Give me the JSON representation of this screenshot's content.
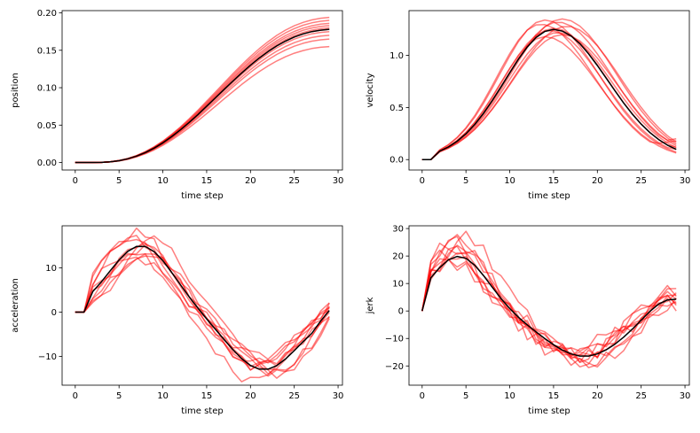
{
  "colors": {
    "trace": "#ff0000",
    "mean": "#000000"
  },
  "chart_data": [
    {
      "type": "line",
      "name": "position",
      "xlabel": "time step",
      "ylabel": "position",
      "xlim": [
        -1.5,
        30.5
      ],
      "ylim": [
        -0.01,
        0.203
      ],
      "xticks": [
        0,
        5,
        10,
        15,
        20,
        25,
        30
      ],
      "yticks": [
        0.0,
        0.05,
        0.1,
        0.15,
        0.2
      ],
      "yticklabels": [
        "0.00",
        "0.05",
        "0.10",
        "0.15",
        "0.20"
      ],
      "mean_end": 0.178,
      "trace_ends": [
        0.155,
        0.165,
        0.17,
        0.175,
        0.178,
        0.18,
        0.183,
        0.186,
        0.19,
        0.194
      ]
    },
    {
      "type": "line",
      "name": "velocity",
      "xlabel": "time step",
      "ylabel": "velocity",
      "xlim": [
        -1.5,
        30.5
      ],
      "ylim": [
        -0.1,
        1.43
      ],
      "xticks": [
        0,
        5,
        10,
        15,
        20,
        25,
        30
      ],
      "yticks": [
        0.0,
        0.5,
        1.0
      ],
      "yticklabels": [
        "0.0",
        "0.5",
        "1.0"
      ],
      "mean_peak": 1.25,
      "mean_peak_t": 15,
      "mean_end": 0.07,
      "trace_peaks": [
        1.18,
        1.2,
        1.22,
        1.24,
        1.26,
        1.28,
        1.3,
        1.32,
        1.34,
        1.35
      ],
      "trace_peak_t": [
        14.0,
        16.0,
        15.5,
        14.5,
        15.0,
        16.5,
        13.5,
        15.5,
        14.0,
        16.0
      ]
    },
    {
      "type": "line",
      "name": "acceleration",
      "xlabel": "time step",
      "ylabel": "acceleration",
      "xlim": [
        -1.5,
        30.5
      ],
      "ylim": [
        -16.5,
        19.5
      ],
      "xticks": [
        0,
        5,
        10,
        15,
        20,
        25,
        30
      ],
      "yticks": [
        -10,
        0,
        10
      ],
      "yticklabels": [
        "−10",
        "0",
        "10"
      ],
      "mean_peak": 15,
      "mean_peak_t": 7.5,
      "mean_min": -13,
      "mean_min_t": 21.5
    },
    {
      "type": "line",
      "name": "jerk",
      "xlabel": "time step",
      "ylabel": "jerk",
      "xlim": [
        -1.5,
        30.5
      ],
      "ylim": [
        -27,
        31
      ],
      "xticks": [
        0,
        5,
        10,
        15,
        20,
        25,
        30
      ],
      "yticks": [
        -20,
        -10,
        0,
        10,
        20,
        30
      ],
      "yticklabels": [
        "−20",
        "−10",
        "0",
        "10",
        "20",
        "30"
      ],
      "mean_peak": 20,
      "mean_peak_t": 4.2,
      "mean_min": -16.5,
      "mean_min_t": 18.5
    }
  ]
}
